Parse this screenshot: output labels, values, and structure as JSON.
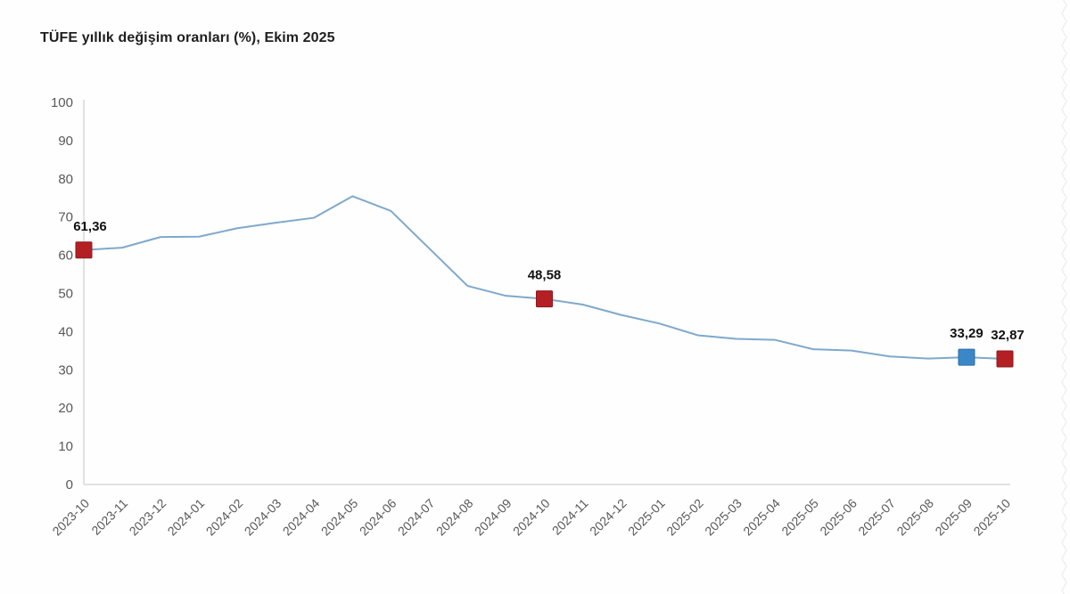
{
  "chart_data": {
    "type": "line",
    "title": "TÜFE yıllık değişim oranları (%), Ekim 2025",
    "categories": [
      "2023-10",
      "2023-11",
      "2023-12",
      "2024-01",
      "2024-02",
      "2024-03",
      "2024-04",
      "2024-05",
      "2024-06",
      "2024-07",
      "2024-08",
      "2024-09",
      "2024-10",
      "2024-11",
      "2024-12",
      "2025-01",
      "2025-02",
      "2025-03",
      "2025-04",
      "2025-05",
      "2025-06",
      "2025-07",
      "2025-08",
      "2025-09",
      "2025-10"
    ],
    "values": [
      61.36,
      61.98,
      64.77,
      64.86,
      67.07,
      68.5,
      69.8,
      75.45,
      71.6,
      61.78,
      51.97,
      49.38,
      48.58,
      47.09,
      44.38,
      42.12,
      39.05,
      38.1,
      37.86,
      35.41,
      35.05,
      33.52,
      32.95,
      33.29,
      32.87
    ],
    "xlabel": "",
    "ylabel": "",
    "ylim": [
      0,
      100
    ],
    "y_ticks": [
      0,
      10,
      20,
      30,
      40,
      50,
      60,
      70,
      80,
      90,
      100
    ],
    "grid": false,
    "legend": "none",
    "annotated_points": [
      {
        "category": "2023-10",
        "value": 61.36,
        "label": "61,36",
        "marker": "red"
      },
      {
        "category": "2024-10",
        "value": 48.58,
        "label": "48,58",
        "marker": "red"
      },
      {
        "category": "2025-09",
        "value": 33.29,
        "label": "33,29",
        "marker": "blue"
      },
      {
        "category": "2025-10",
        "value": 32.87,
        "label": "32,87",
        "marker": "red"
      }
    ]
  },
  "colors": {
    "line": "#7fa9cb",
    "marker_red": "#b41f24",
    "marker_red_border": "#8e181d",
    "marker_blue": "#3a87c8",
    "marker_blue_border": "#2d6da8",
    "axis": "#d9d9d9",
    "tick_text": "#595959",
    "title_text": "#1f1f1f",
    "label_text": "#111111",
    "watermark": "#ececec"
  }
}
